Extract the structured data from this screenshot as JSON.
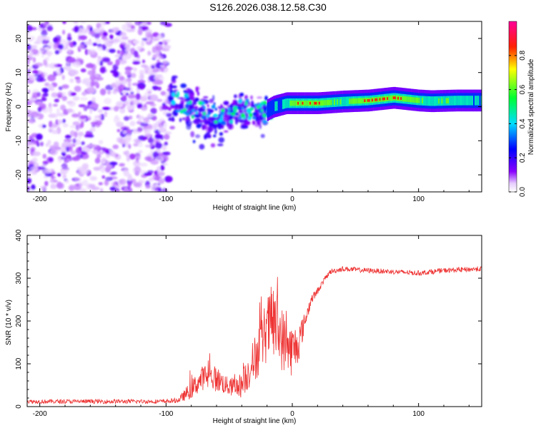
{
  "figure_title": "S126.2026.038.12.58.C30",
  "chart_data": [
    {
      "type": "heatmap",
      "title": "S126.2026.038.12.58.C30",
      "xlabel": "Height of straight line (km)",
      "ylabel": "Frequency (Hz)",
      "xlim": [
        -210,
        150
      ],
      "ylim": [
        -25,
        25
      ],
      "xticks": [
        -200,
        -100,
        0,
        100
      ],
      "yticks": [
        -20,
        -10,
        0,
        10,
        20
      ],
      "xtick_labels": [
        "-200",
        "-100",
        "0",
        "100"
      ],
      "ytick_labels": [
        "-20",
        "-10",
        "0",
        "10",
        "20"
      ],
      "colorbar": {
        "label": "Normalized spectral amplitude",
        "range": [
          0,
          1
        ],
        "ticks": [
          0.0,
          0.2,
          0.4,
          0.6,
          0.8
        ],
        "tick_labels": [
          "0.0",
          "0.2",
          "0.4",
          "0.6",
          "0.8"
        ],
        "colormap": "rainbow (white-violet-blue-cyan-green-yellow-red-magenta)"
      },
      "regions": [
        {
          "name": "noise",
          "x_range": [
            -210,
            -98
          ],
          "f_range": [
            -25,
            25
          ],
          "amplitude": 0.05
        },
        {
          "name": "transition",
          "x_range": [
            -98,
            -20
          ],
          "f_range": [
            -12,
            5
          ],
          "amplitude": 0.3
        },
        {
          "name": "tone",
          "x_range": [
            -20,
            150
          ],
          "f_range": [
            0,
            3
          ],
          "amplitude": 0.8
        }
      ],
      "tone_trace": {
        "x": [
          -95,
          -85,
          -75,
          -65,
          -55,
          -45,
          -35,
          -25,
          -15,
          -5,
          5,
          20,
          40,
          60,
          80,
          90,
          100,
          110,
          130,
          150
        ],
        "freq": [
          2,
          1,
          -1,
          -3,
          -3,
          -1,
          -1,
          -2,
          0,
          1,
          1,
          1,
          1.5,
          1.8,
          2.6,
          2.2,
          1.8,
          1.6,
          1.8,
          1.8
        ],
        "amplitude": [
          0.3,
          0.35,
          0.3,
          0.35,
          0.3,
          0.35,
          0.3,
          0.35,
          0.4,
          0.5,
          0.85,
          0.8,
          0.6,
          0.85,
          0.9,
          0.75,
          0.7,
          0.6,
          0.55,
          0.5
        ]
      }
    },
    {
      "type": "line",
      "xlabel": "Height of straight line (km)",
      "ylabel": "SNR (10 * v/v)",
      "xlim": [
        -210,
        150
      ],
      "ylim": [
        0,
        400
      ],
      "xticks": [
        -200,
        -100,
        0,
        100
      ],
      "yticks": [
        0,
        100,
        200,
        300,
        400
      ],
      "xtick_labels": [
        "-200",
        "-100",
        "0",
        "100"
      ],
      "ytick_labels": [
        "0",
        "100",
        "200",
        "300",
        "400"
      ],
      "color": "#ee3333",
      "series": [
        {
          "name": "SNR",
          "x": [
            -210,
            -150,
            -100,
            -90,
            -80,
            -70,
            -60,
            -50,
            -40,
            -30,
            -20,
            -15,
            -10,
            -5,
            0,
            5,
            10,
            15,
            20,
            25,
            30,
            40,
            60,
            80,
            100,
            120,
            150
          ],
          "y": [
            12,
            12,
            12,
            15,
            40,
            70,
            65,
            45,
            50,
            110,
            180,
            200,
            170,
            140,
            130,
            150,
            200,
            250,
            270,
            295,
            315,
            322,
            318,
            315,
            312,
            318,
            322
          ],
          "noise": [
            5,
            5,
            5,
            6,
            22,
            30,
            30,
            20,
            30,
            55,
            75,
            95,
            80,
            70,
            60,
            45,
            20,
            12,
            8,
            6,
            6,
            6,
            6,
            6,
            6,
            6,
            6
          ]
        }
      ]
    }
  ]
}
